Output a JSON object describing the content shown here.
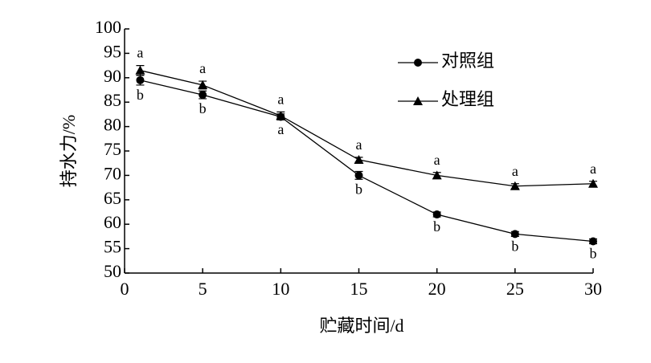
{
  "chart_data": {
    "type": "line",
    "x_label": "贮藏时间/d",
    "y_label": "持水力/%",
    "x": [
      1,
      5,
      10,
      15,
      20,
      25,
      30
    ],
    "series": [
      {
        "name": "对照组",
        "color": "#000000",
        "marker": "circle",
        "values": [
          89.5,
          86.5,
          82,
          70,
          62,
          58,
          56.5
        ],
        "errors": [
          1,
          0.8,
          0.6,
          0.8,
          0.5,
          0.5,
          0.5
        ],
        "letters": [
          "b",
          "b",
          "a",
          "b",
          "b",
          "b",
          "b"
        ],
        "letter_position": "below"
      },
      {
        "name": "处理组",
        "color": "#000000",
        "marker": "triangle",
        "values": [
          91.5,
          88.5,
          82.2,
          73.2,
          70,
          67.8,
          68.3
        ],
        "errors": [
          1,
          0.8,
          0.8,
          0.5,
          0.6,
          0.5,
          0.5
        ],
        "letters": [
          "a",
          "a",
          "a",
          "a",
          "a",
          "a",
          "a"
        ],
        "letter_position": "above"
      }
    ],
    "xlim": [
      0,
      30
    ],
    "xticks": [
      0,
      5,
      10,
      15,
      20,
      25,
      30
    ],
    "ylim": [
      50,
      100
    ],
    "yticks": [
      50,
      55,
      60,
      65,
      70,
      75,
      80,
      85,
      90,
      95,
      100
    ],
    "legend": "upper right"
  }
}
